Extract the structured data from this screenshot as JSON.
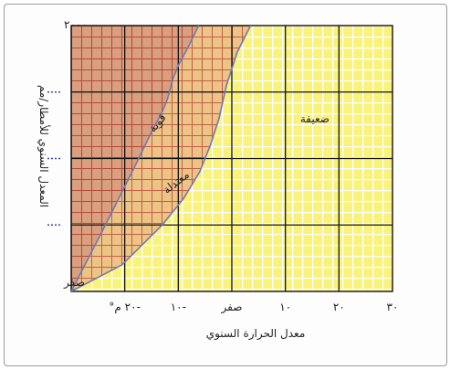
{
  "chart_data": {
    "type": "area",
    "title": "",
    "xlabel": "معدل الحرارة السنوي",
    "ylabel": "المعدل السنوي للأمطار/مم",
    "xlim": [
      -30,
      30
    ],
    "ylim": [
      0,
      2000
    ],
    "x_ticks": [
      {
        "value": -20,
        "label": "-٢٠ م°"
      },
      {
        "value": -10,
        "label": "-١٠"
      },
      {
        "value": 0,
        "label": "صفر"
      },
      {
        "value": 10,
        "label": "١٠"
      },
      {
        "value": 20,
        "label": "٢٠"
      },
      {
        "value": 30,
        "label": "٣٠"
      }
    ],
    "y_ticks": [
      {
        "value": 0,
        "label": "صفر"
      },
      {
        "value": 2000,
        "label": "٢٠٠٠"
      }
    ],
    "grid": true,
    "series": [
      {
        "name": "قوية",
        "color": "#d9a080",
        "x": [
          -30,
          -23.6,
          -18,
          -15,
          -13,
          -12,
          -11,
          -10,
          -8,
          -6.2
        ],
        "y": [
          0,
          500,
          950,
          1200,
          1350,
          1450,
          1600,
          1700,
          1850,
          2000
        ]
      },
      {
        "name": "معتدلة",
        "color": "#ebc486",
        "x": [
          -30,
          -20.5,
          -13,
          -9,
          -6,
          -4,
          -2.4,
          -1,
          1,
          3.5
        ],
        "y": [
          0,
          200,
          500,
          700,
          900,
          1100,
          1300,
          1550,
          1800,
          2000
        ]
      },
      {
        "name": "ضعيفة",
        "color": "#f9f37c",
        "x": [],
        "y": []
      }
    ]
  }
}
